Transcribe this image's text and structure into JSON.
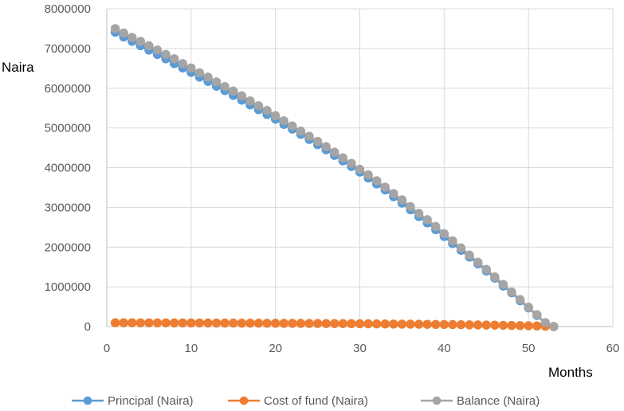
{
  "chart_data": {
    "type": "scatter",
    "title": "",
    "xlabel": "Months",
    "ylabel": "Naira",
    "xlim": [
      0,
      60
    ],
    "ylim": [
      0,
      8000000
    ],
    "x_ticks": [
      "0",
      "10",
      "20",
      "30",
      "40",
      "50",
      "60"
    ],
    "y_ticks": [
      "0",
      "1000000",
      "2000000",
      "3000000",
      "4000000",
      "5000000",
      "6000000",
      "7000000",
      "8000000"
    ],
    "grid": "vertical and horizontal",
    "legend_position": "bottom",
    "x": [
      1,
      2,
      3,
      4,
      5,
      6,
      7,
      8,
      9,
      10,
      11,
      12,
      13,
      14,
      15,
      16,
      17,
      18,
      19,
      20,
      21,
      22,
      23,
      24,
      25,
      26,
      27,
      28,
      29,
      30,
      31,
      32,
      33,
      34,
      35,
      36,
      37,
      38,
      39,
      40,
      41,
      42,
      43,
      44,
      45,
      46,
      47,
      48,
      49,
      50,
      51,
      52,
      53
    ],
    "series": [
      {
        "name": "Principal (Naira)",
        "color": "#5b9bd5",
        "values": [
          7410000,
          7290000,
          7180000,
          7070000,
          6960000,
          6850000,
          6740000,
          6620000,
          6510000,
          6400000,
          6280000,
          6170000,
          6050000,
          5940000,
          5820000,
          5700000,
          5580000,
          5460000,
          5340000,
          5220000,
          5090000,
          4970000,
          4840000,
          4710000,
          4580000,
          4450000,
          4310000,
          4170000,
          4030000,
          3890000,
          3740000,
          3590000,
          3440000,
          3270000,
          3110000,
          2940000,
          2770000,
          2610000,
          2440000,
          2270000,
          2090000,
          1920000,
          1750000,
          1580000,
          1400000,
          1220000,
          1020000,
          850000,
          650000,
          470000,
          280000,
          90000,
          0
        ]
      },
      {
        "name": "Cost of fund (Naira)",
        "color": "#ed7d31",
        "values": [
          95000,
          95000,
          95000,
          94000,
          94000,
          93000,
          93000,
          92000,
          92000,
          91000,
          91000,
          90000,
          89000,
          88000,
          88000,
          87000,
          86000,
          85000,
          84000,
          83000,
          82000,
          81000,
          80000,
          79000,
          78000,
          77000,
          76000,
          75000,
          74000,
          72000,
          70000,
          68000,
          66000,
          64000,
          62000,
          60000,
          58000,
          56000,
          54000,
          52000,
          50000,
          47000,
          44000,
          41000,
          38000,
          35000,
          32000,
          28000,
          24000,
          20000,
          16000,
          8000,
          0
        ]
      },
      {
        "name": "Balance (Naira)",
        "color": "#a5a5a5",
        "values": [
          7500000,
          7390000,
          7280000,
          7180000,
          7070000,
          6960000,
          6850000,
          6740000,
          6620000,
          6510000,
          6390000,
          6280000,
          6160000,
          6040000,
          5930000,
          5810000,
          5680000,
          5560000,
          5440000,
          5310000,
          5180000,
          5050000,
          4920000,
          4790000,
          4660000,
          4530000,
          4390000,
          4250000,
          4110000,
          3960000,
          3820000,
          3670000,
          3510000,
          3350000,
          3190000,
          3020000,
          2850000,
          2690000,
          2520000,
          2340000,
          2160000,
          1980000,
          1800000,
          1620000,
          1440000,
          1250000,
          1060000,
          870000,
          680000,
          490000,
          300000,
          100000,
          0
        ]
      }
    ]
  }
}
